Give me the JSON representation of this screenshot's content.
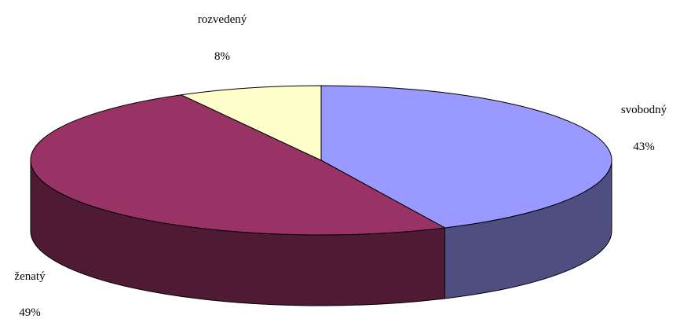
{
  "chart_data": {
    "type": "pie",
    "style": "3d",
    "title": "",
    "grid": false,
    "legend": "none",
    "slices": [
      {
        "name": "svobodný",
        "value": 43,
        "label": "43%",
        "color": "#9999ff",
        "side_color": "#4e4f80"
      },
      {
        "name": "ženatý",
        "value": 49,
        "label": "49%",
        "color": "#993366",
        "side_color": "#4f1a33"
      },
      {
        "name": "rozvedený",
        "value": 8,
        "label": "8%",
        "color": "#ffffcc",
        "side_color": "#808066"
      }
    ]
  }
}
